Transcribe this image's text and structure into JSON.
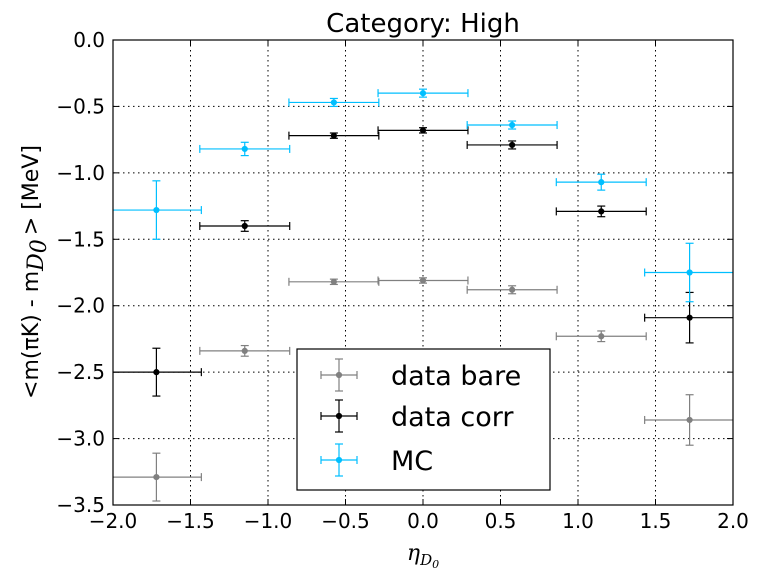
{
  "chart_data": {
    "type": "scatter",
    "title": "Category: High",
    "ylabel_prefix": "<m(πK) - m",
    "ylabel_sub": "D",
    "ylabel_subsub": "0",
    "ylabel_suffix": "> [MeV]",
    "xlabel_main": "η",
    "xlabel_sub": "D",
    "xlabel_subsub": "0",
    "xlim": [
      -2.0,
      2.0
    ],
    "ylim": [
      -3.5,
      0.0
    ],
    "xticks": [
      "−2.0",
      "−1.5",
      "−1.0",
      "−0.5",
      "0.0",
      "0.5",
      "1.0",
      "1.5",
      "2.0"
    ],
    "xtick_values": [
      -2.0,
      -1.5,
      -1.0,
      -0.5,
      0.0,
      0.5,
      1.0,
      1.5,
      2.0
    ],
    "yticks": [
      "0.0",
      "−0.5",
      "−1.0",
      "−1.5",
      "−2.0",
      "−2.5",
      "−3.0",
      "−3.5"
    ],
    "ytick_values": [
      0.0,
      -0.5,
      -1.0,
      -1.5,
      -2.0,
      -2.5,
      -3.0,
      -3.5
    ],
    "grid": true,
    "legend_position": "lower-center",
    "series": [
      {
        "name": "data bare",
        "color": "#808080",
        "x": [
          -1.72,
          -1.15,
          -0.575,
          0.0,
          0.575,
          1.15,
          1.72
        ],
        "xerr": [
          0.29,
          0.29,
          0.29,
          0.29,
          0.29,
          0.29,
          0.29
        ],
        "y": [
          -3.29,
          -2.34,
          -1.82,
          -1.81,
          -1.88,
          -2.23,
          -2.86
        ],
        "yerr": [
          0.18,
          0.04,
          0.02,
          0.02,
          0.03,
          0.04,
          0.19
        ]
      },
      {
        "name": "data corr",
        "color": "#000000",
        "x": [
          -1.72,
          -1.15,
          -0.575,
          0.0,
          0.575,
          1.15,
          1.72
        ],
        "xerr": [
          0.29,
          0.29,
          0.29,
          0.29,
          0.29,
          0.29,
          0.29
        ],
        "y": [
          -2.5,
          -1.4,
          -0.72,
          -0.68,
          -0.79,
          -1.29,
          -2.09
        ],
        "yerr": [
          0.18,
          0.04,
          0.02,
          0.02,
          0.03,
          0.04,
          0.19
        ]
      },
      {
        "name": "MC",
        "color": "#00bfff",
        "x": [
          -1.72,
          -1.15,
          -0.575,
          0.0,
          0.575,
          1.15,
          1.72
        ],
        "xerr": [
          0.29,
          0.29,
          0.29,
          0.29,
          0.29,
          0.29,
          0.29
        ],
        "y": [
          -1.28,
          -0.82,
          -0.47,
          -0.4,
          -0.64,
          -1.07,
          -1.75
        ],
        "yerr": [
          0.22,
          0.05,
          0.03,
          0.03,
          0.03,
          0.06,
          0.22
        ]
      }
    ]
  }
}
